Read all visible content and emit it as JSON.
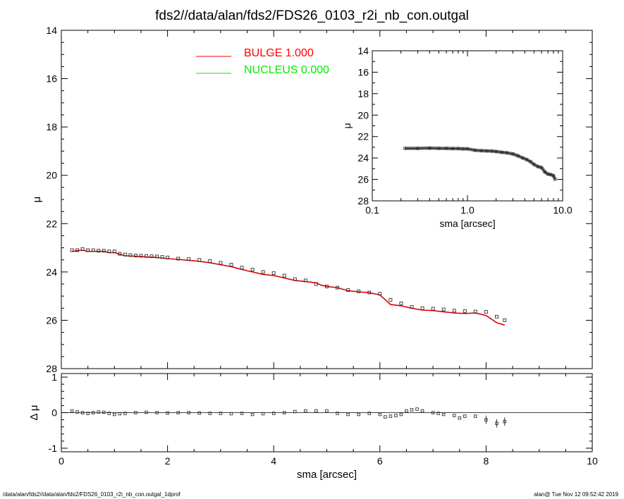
{
  "title": "fds2//data/alan/fds2/FDS26_0103_r2i_nb_con.outgal",
  "footer_left": "/data/alan/fds2//data/alan/fds2/FDS26_0103_r2i_nb_con.outgal_1dprof",
  "footer_right": "alan@  Tue Nov 12 09:52:42 2019",
  "legend": [
    {
      "label": "BULGE  1.000",
      "color": "#ff0000"
    },
    {
      "label": "NUCLEUS  0.000",
      "color": "#00ee00"
    }
  ],
  "chart_data": [
    {
      "type": "scatter",
      "name": "main_profile",
      "xlabel": "sma [arcsec]",
      "ylabel": "μ",
      "xlim": [
        0,
        10
      ],
      "ylim": [
        28,
        14
      ],
      "xticks": [
        0,
        2,
        4,
        6,
        8,
        10
      ],
      "yticks": [
        14,
        16,
        18,
        20,
        22,
        24,
        26,
        28
      ],
      "series": [
        {
          "name": "data",
          "x": [
            0.2,
            0.3,
            0.4,
            0.5,
            0.6,
            0.7,
            0.8,
            0.9,
            1.0,
            1.1,
            1.2,
            1.3,
            1.4,
            1.5,
            1.6,
            1.7,
            1.8,
            1.9,
            2.0,
            2.2,
            2.4,
            2.6,
            2.8,
            3.0,
            3.2,
            3.4,
            3.6,
            3.8,
            4.0,
            4.2,
            4.4,
            4.6,
            4.8,
            5.0,
            5.2,
            5.4,
            5.6,
            5.8,
            6.0,
            6.2,
            6.4,
            6.6,
            6.8,
            7.0,
            7.2,
            7.4,
            7.6,
            7.8,
            8.0,
            8.2,
            8.35
          ],
          "y": [
            23.1,
            23.1,
            23.05,
            23.1,
            23.1,
            23.12,
            23.12,
            23.15,
            23.15,
            23.25,
            23.28,
            23.3,
            23.32,
            23.33,
            23.34,
            23.35,
            23.36,
            23.38,
            23.4,
            23.45,
            23.47,
            23.5,
            23.55,
            23.62,
            23.7,
            23.82,
            23.9,
            24.0,
            24.05,
            24.15,
            24.3,
            24.35,
            24.5,
            24.6,
            24.65,
            24.75,
            24.8,
            24.85,
            24.9,
            25.15,
            25.3,
            25.45,
            25.5,
            25.52,
            25.55,
            25.6,
            25.62,
            25.64,
            25.65,
            25.85,
            26.0
          ]
        },
        {
          "name": "BULGE  1.000",
          "x": [
            0.2,
            0.3,
            0.4,
            0.5,
            0.6,
            0.7,
            0.8,
            0.9,
            1.0,
            1.2,
            1.4,
            1.6,
            1.8,
            2.0,
            2.2,
            2.4,
            2.6,
            2.8,
            3.0,
            3.2,
            3.4,
            3.6,
            3.8,
            4.0,
            4.2,
            4.4,
            4.6,
            4.8,
            4.9,
            5.0,
            5.2,
            5.4,
            5.6,
            5.8,
            6.0,
            6.2,
            6.4,
            6.6,
            6.8,
            7.0,
            7.2,
            7.4,
            7.6,
            7.8,
            8.0,
            8.2,
            8.35
          ],
          "y": [
            23.15,
            23.12,
            23.1,
            23.15,
            23.15,
            23.15,
            23.15,
            23.2,
            23.2,
            23.33,
            23.35,
            23.38,
            23.4,
            23.45,
            23.48,
            23.52,
            23.56,
            23.62,
            23.7,
            23.78,
            23.9,
            24.0,
            24.1,
            24.15,
            24.25,
            24.35,
            24.4,
            24.45,
            24.55,
            24.6,
            24.65,
            24.78,
            24.82,
            24.86,
            24.95,
            25.35,
            25.4,
            25.5,
            25.58,
            25.6,
            25.65,
            25.7,
            25.72,
            25.7,
            25.8,
            26.1,
            26.2
          ]
        }
      ]
    },
    {
      "type": "scatter",
      "name": "residuals",
      "xlabel": "sma [arcsec]",
      "ylabel": "Δ μ",
      "xlim": [
        0,
        10
      ],
      "ylim": [
        -1,
        1
      ],
      "yticks": [
        1,
        0,
        -1
      ],
      "series": [
        {
          "name": "residual",
          "x": [
            0.2,
            0.3,
            0.4,
            0.5,
            0.6,
            0.7,
            0.8,
            0.9,
            1.0,
            1.1,
            1.2,
            1.4,
            1.6,
            1.8,
            2.0,
            2.2,
            2.4,
            2.6,
            2.8,
            3.0,
            3.2,
            3.4,
            3.6,
            3.8,
            4.0,
            4.2,
            4.4,
            4.6,
            4.8,
            5.0,
            5.2,
            5.4,
            5.6,
            5.8,
            6.0,
            6.1,
            6.2,
            6.3,
            6.4,
            6.5,
            6.6,
            6.7,
            6.8,
            7.0,
            7.1,
            7.2,
            7.4,
            7.5,
            7.6,
            7.8,
            8.0,
            8.2,
            8.35
          ],
          "y": [
            0.05,
            0.02,
            0.0,
            -0.02,
            0.0,
            0.02,
            0.01,
            -0.02,
            -0.05,
            -0.03,
            -0.02,
            0.0,
            0.01,
            0.0,
            -0.01,
            0.0,
            0.0,
            -0.01,
            -0.02,
            -0.02,
            -0.03,
            -0.02,
            -0.05,
            -0.03,
            -0.02,
            0.0,
            0.03,
            0.05,
            0.05,
            0.05,
            -0.02,
            -0.05,
            -0.05,
            -0.02,
            -0.05,
            -0.12,
            -0.1,
            -0.08,
            -0.05,
            0.05,
            0.08,
            0.1,
            0.05,
            0.0,
            -0.02,
            -0.05,
            -0.08,
            -0.15,
            -0.1,
            -0.1,
            -0.2,
            -0.3,
            -0.25
          ]
        }
      ]
    },
    {
      "type": "scatter",
      "name": "inset_log",
      "xlabel": "sma [arcsec]",
      "ylabel": "μ",
      "xscale": "log",
      "xlim": [
        0.1,
        10.0
      ],
      "ylim": [
        28,
        14
      ],
      "xticks": [
        "0.1",
        "1.0",
        "10.0"
      ],
      "yticks": [
        14,
        16,
        18,
        20,
        22,
        24,
        26,
        28
      ],
      "series": [
        {
          "name": "data",
          "x": [
            0.22,
            0.3,
            0.4,
            0.5,
            0.6,
            0.7,
            0.8,
            0.9,
            1.0,
            1.2,
            1.4,
            1.6,
            1.8,
            2.0,
            2.3,
            2.6,
            3.0,
            3.4,
            3.8,
            4.2,
            4.6,
            5.0,
            5.5,
            6.0,
            6.5,
            7.0,
            7.5,
            8.0,
            8.35
          ],
          "y": [
            23.1,
            23.1,
            23.08,
            23.1,
            23.1,
            23.12,
            23.12,
            23.15,
            23.15,
            23.28,
            23.32,
            23.34,
            23.36,
            23.4,
            23.47,
            23.52,
            23.62,
            23.8,
            24.0,
            24.15,
            24.35,
            24.6,
            24.8,
            24.9,
            25.3,
            25.5,
            25.55,
            25.65,
            26.0
          ]
        }
      ]
    }
  ]
}
